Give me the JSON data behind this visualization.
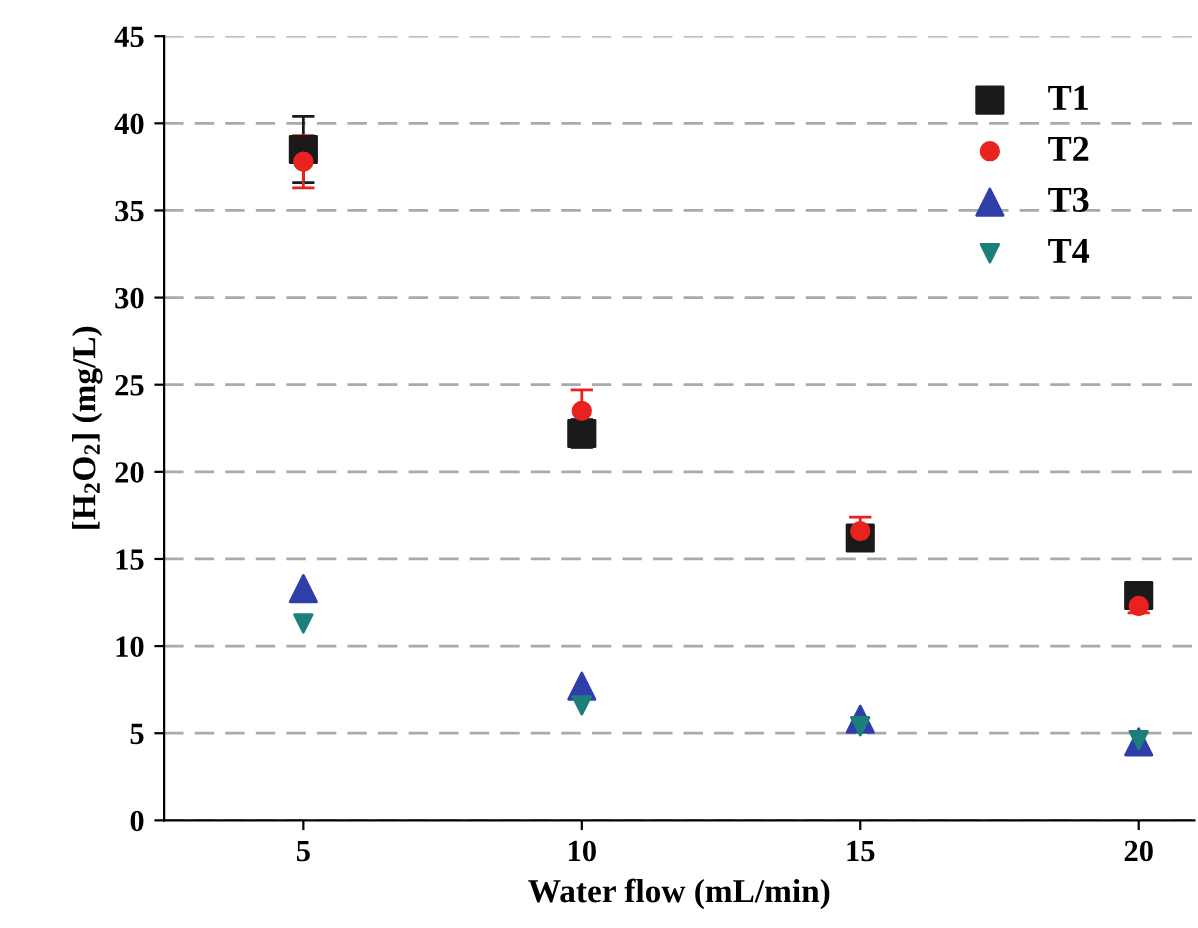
{
  "chart_data": {
    "type": "scatter",
    "xlabel": "Water flow (mL/min)",
    "ylabel": "[H$_{2}$O$_{2}$] (mg/L)",
    "x": [
      5,
      10,
      15,
      20
    ],
    "series": [
      {
        "name": "T1",
        "color": "#1a1a1a",
        "marker": "square",
        "values": [
          38.5,
          22.2,
          16.2,
          12.9
        ],
        "errors": [
          1.9,
          0.8,
          0.6,
          0.4
        ]
      },
      {
        "name": "T2",
        "color": "#e8231f",
        "marker": "circle",
        "values": [
          37.8,
          23.5,
          16.6,
          12.3
        ],
        "errors": [
          1.5,
          1.2,
          0.8,
          0.4
        ]
      },
      {
        "name": "T3",
        "color": "#2f3ea8",
        "marker": "triangle",
        "values": [
          13.3,
          7.7,
          5.8,
          4.5
        ]
      },
      {
        "name": "T4",
        "color": "#1d7f7a",
        "marker": "triangle_down",
        "values": [
          11.3,
          6.6,
          5.4,
          4.6
        ]
      }
    ],
    "xlim": [
      2.5,
      21
    ],
    "xticks": [
      5,
      10,
      15,
      20
    ],
    "ylim": [
      0,
      45
    ],
    "yticks": [
      0,
      5,
      10,
      15,
      20,
      25,
      30,
      35,
      40,
      45
    ],
    "grid": "y",
    "legend": "top right"
  }
}
